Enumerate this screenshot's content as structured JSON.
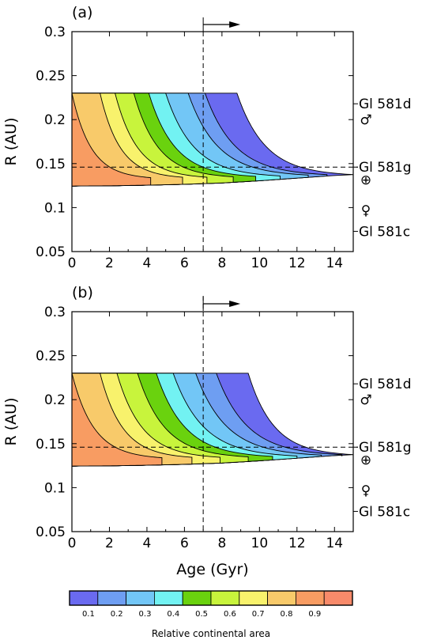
{
  "figure": {
    "xlabel": "Age (Gyr)",
    "colorbar_label": "Relative continental area"
  },
  "colors": {
    "levels": [
      "#6a6af0",
      "#6e9ef2",
      "#72c6f6",
      "#72f2f2",
      "#6ad20e",
      "#c8f43c",
      "#f8f26c",
      "#f8ca6a",
      "#f89c62",
      "#f88a6a"
    ]
  },
  "chart_data": [
    {
      "type": "area",
      "panel_label": "(a)",
      "ylabel": "R (AU)",
      "xlim": [
        0,
        15
      ],
      "ylim": [
        0.05,
        0.3
      ],
      "x_ticks": [
        "0",
        "2",
        "4",
        "6",
        "8",
        "10",
        "12",
        "14"
      ],
      "y_ticks": [
        "0.05",
        "0.1",
        "0.15",
        "0.2",
        "0.25",
        "0.3"
      ],
      "vertical_dashed_x": 7,
      "horizontal_dashed_y": 0.146,
      "arrow_label": "",
      "planets": [
        {
          "name": "Gl 581d",
          "r": 0.218,
          "symbol": "♂",
          "symbol_r": 0.2
        },
        {
          "name": "Gl 581g",
          "r": 0.146,
          "symbol": "⊕",
          "symbol_r": 0.132
        },
        {
          "name": "Gl 581c",
          "r": 0.073,
          "symbol": "♀",
          "symbol_r": 0.097
        }
      ],
      "inner_edge": [
        [
          0,
          0.1245
        ],
        [
          2,
          0.1248
        ],
        [
          4,
          0.1255
        ],
        [
          6,
          0.1265
        ],
        [
          8,
          0.128
        ],
        [
          10,
          0.1305
        ],
        [
          12,
          0.1335
        ],
        [
          14,
          0.1365
        ],
        [
          15,
          0.1375
        ]
      ],
      "contours": [
        {
          "level": 0.1,
          "t_start": 8.8,
          "t_end": 15.0,
          "tip_r": 0.1375
        },
        {
          "level": 0.2,
          "t_start": 7.1,
          "t_end": 13.6,
          "tip_r": 0.1375
        },
        {
          "level": 0.3,
          "t_start": 6.2,
          "t_end": 12.6,
          "tip_r": 0.137
        },
        {
          "level": 0.4,
          "t_start": 5.0,
          "t_end": 11.1,
          "tip_r": 0.136
        },
        {
          "level": 0.5,
          "t_start": 4.1,
          "t_end": 9.8,
          "tip_r": 0.1355
        },
        {
          "level": 0.6,
          "t_start": 3.3,
          "t_end": 8.6,
          "tip_r": 0.135
        },
        {
          "level": 0.7,
          "t_start": 2.3,
          "t_end": 7.2,
          "tip_r": 0.1345
        },
        {
          "level": 0.8,
          "t_start": 1.5,
          "t_end": 5.9,
          "tip_r": 0.1345
        },
        {
          "level": 0.9,
          "t_start": 0.0,
          "t_end": 4.2,
          "tip_r": 0.134
        }
      ],
      "r_top": 0.23
    },
    {
      "type": "area",
      "panel_label": "(b)",
      "ylabel": "R (AU)",
      "xlim": [
        0,
        15
      ],
      "ylim": [
        0.05,
        0.3
      ],
      "x_ticks": [
        "0",
        "2",
        "4",
        "6",
        "8",
        "10",
        "12",
        "14"
      ],
      "y_ticks": [
        "0.05",
        "0.1",
        "0.15",
        "0.2",
        "0.25",
        "0.3"
      ],
      "vertical_dashed_x": 7,
      "horizontal_dashed_y": 0.146,
      "arrow_label": "",
      "planets": [
        {
          "name": "Gl 581d",
          "r": 0.218,
          "symbol": "♂",
          "symbol_r": 0.2
        },
        {
          "name": "Gl 581g",
          "r": 0.146,
          "symbol": "⊕",
          "symbol_r": 0.132
        },
        {
          "name": "Gl 581c",
          "r": 0.073,
          "symbol": "♀",
          "symbol_r": 0.097
        }
      ],
      "inner_edge": [
        [
          0,
          0.1245
        ],
        [
          2,
          0.1248
        ],
        [
          4,
          0.1255
        ],
        [
          6,
          0.1265
        ],
        [
          8,
          0.128
        ],
        [
          10,
          0.1305
        ],
        [
          12,
          0.1335
        ],
        [
          14,
          0.1365
        ],
        [
          15,
          0.1375
        ]
      ],
      "contours": [
        {
          "level": 0.1,
          "t_start": 9.4,
          "t_end": 15.0,
          "tip_r": 0.1375
        },
        {
          "level": 0.2,
          "t_start": 7.7,
          "t_end": 14.4,
          "tip_r": 0.1375
        },
        {
          "level": 0.3,
          "t_start": 6.6,
          "t_end": 13.3,
          "tip_r": 0.137
        },
        {
          "level": 0.4,
          "t_start": 5.4,
          "t_end": 12.0,
          "tip_r": 0.136
        },
        {
          "level": 0.5,
          "t_start": 4.5,
          "t_end": 10.7,
          "tip_r": 0.1355
        },
        {
          "level": 0.6,
          "t_start": 3.5,
          "t_end": 9.4,
          "tip_r": 0.135
        },
        {
          "level": 0.7,
          "t_start": 2.4,
          "t_end": 7.9,
          "tip_r": 0.1345
        },
        {
          "level": 0.8,
          "t_start": 1.5,
          "t_end": 6.4,
          "tip_r": 0.1345
        },
        {
          "level": 0.9,
          "t_start": 0.0,
          "t_end": 4.8,
          "tip_r": 0.134
        }
      ],
      "r_top": 0.23
    }
  ],
  "colorbar": {
    "ticks": [
      "0.1",
      "0.2",
      "0.3",
      "0.4",
      "0.5",
      "0.6",
      "0.7",
      "0.8",
      "0.9"
    ]
  }
}
